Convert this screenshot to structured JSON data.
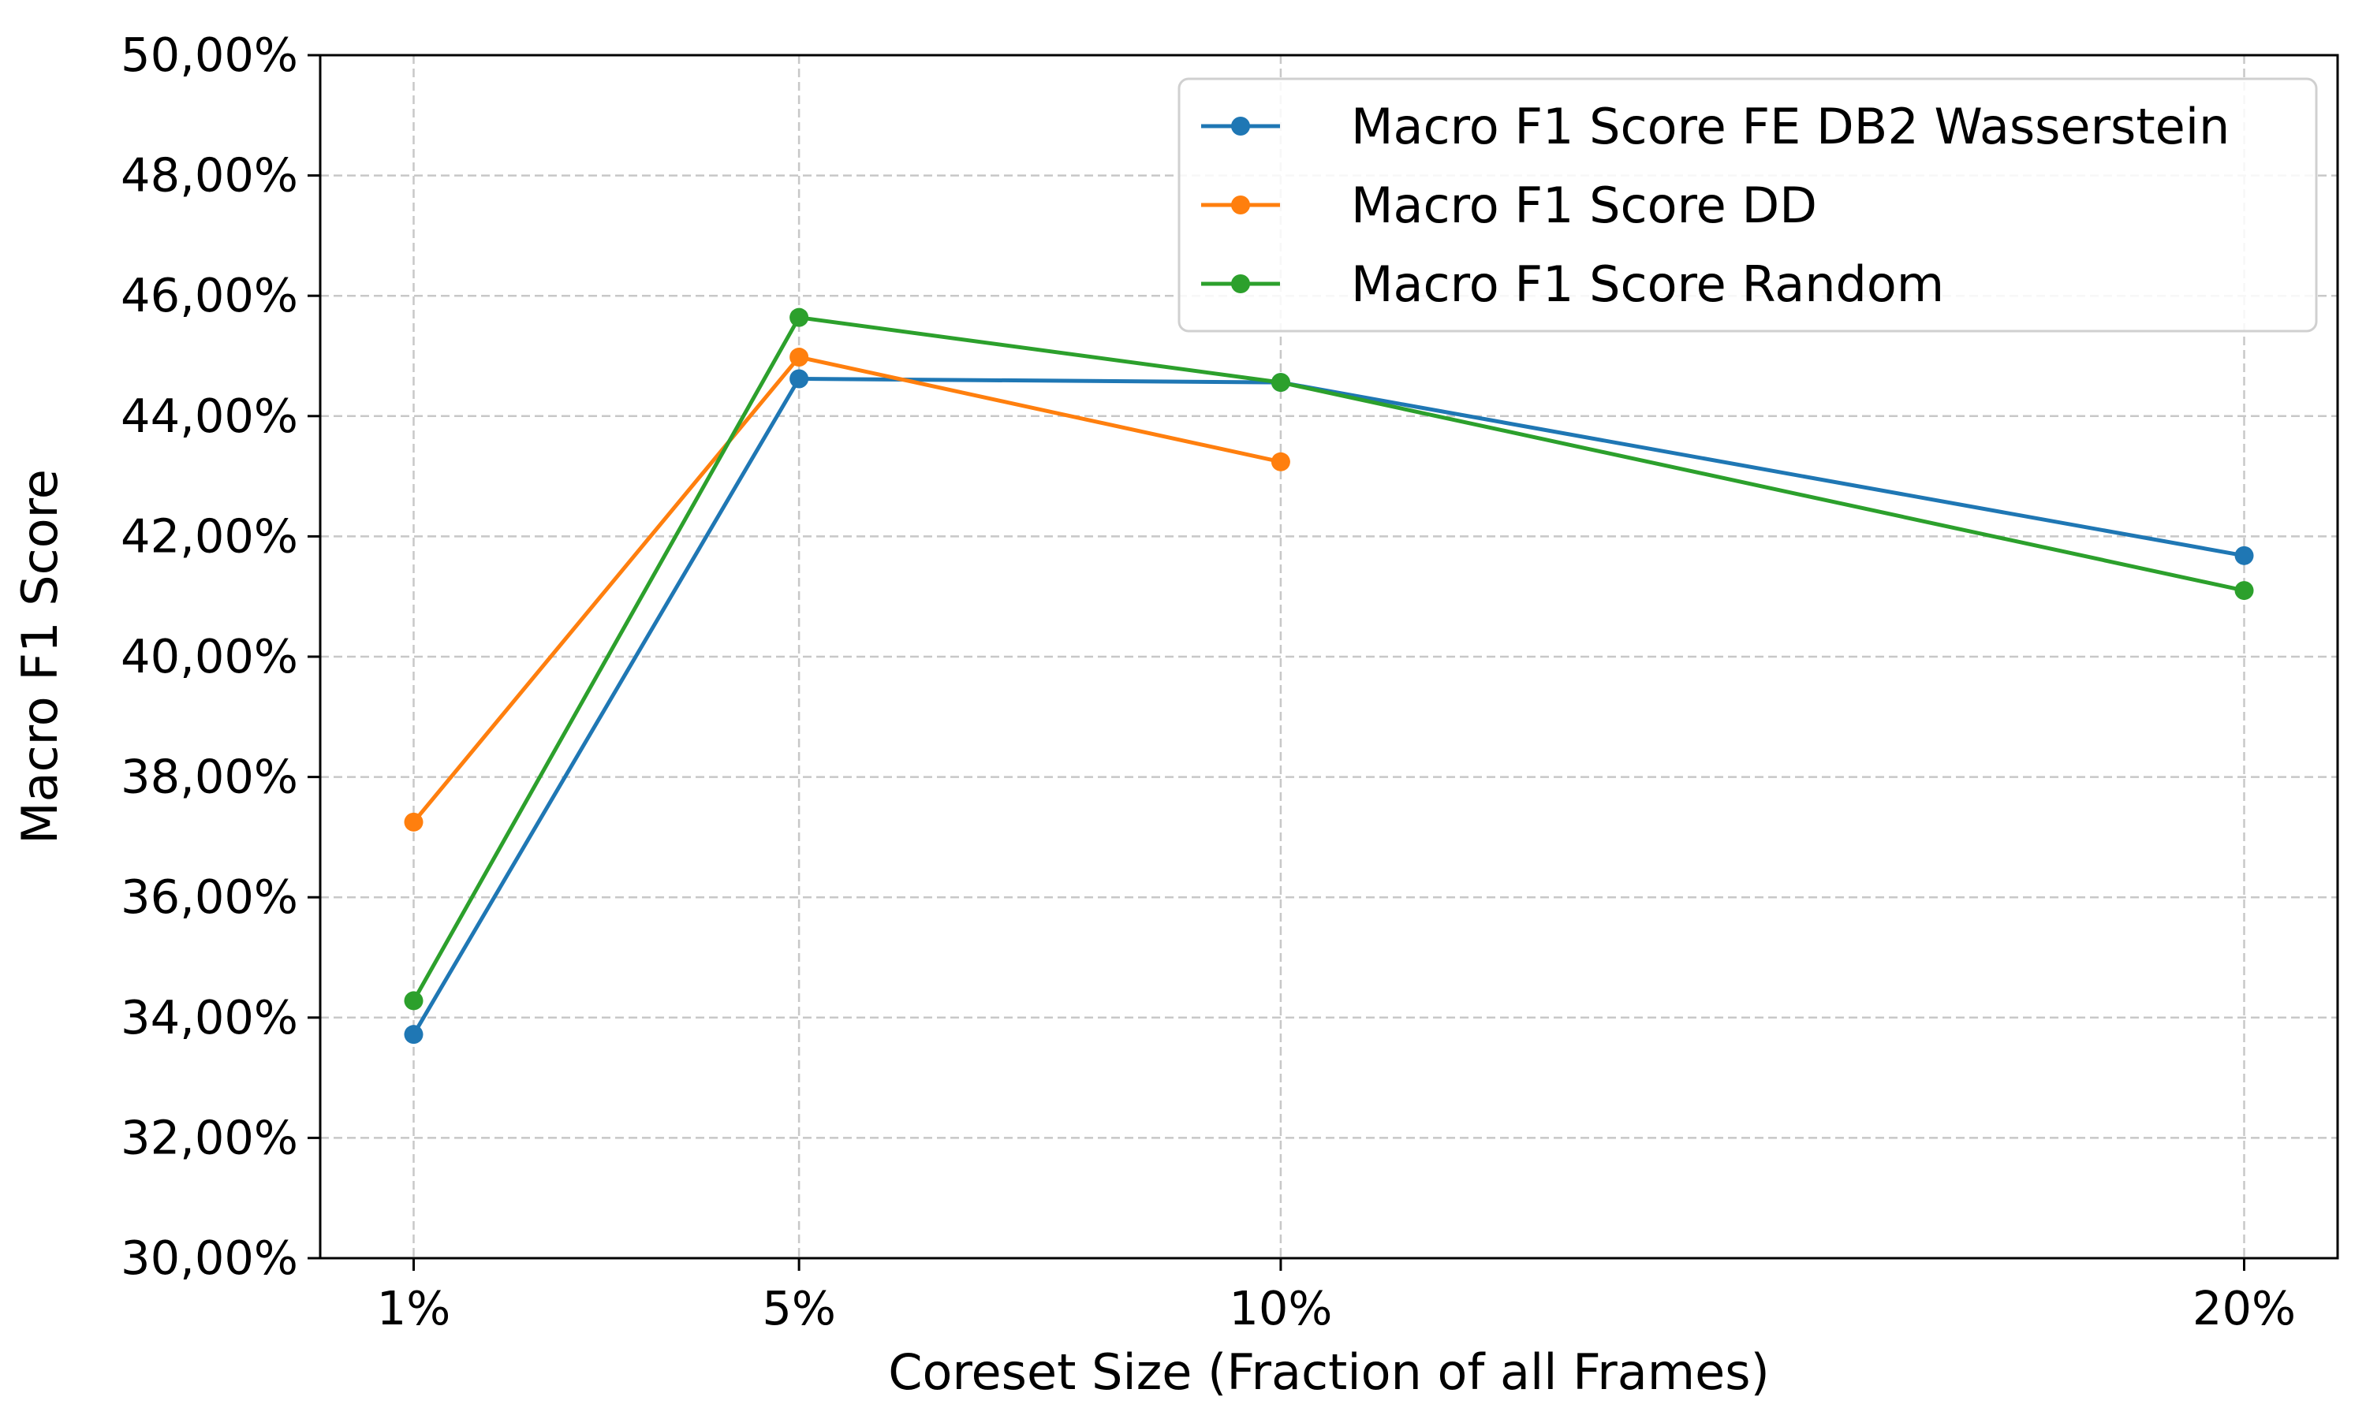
{
  "chart_data": {
    "type": "line",
    "xlabel": "Coreset Size (Fraction of all Frames)",
    "ylabel": "Macro F1 Score",
    "x_ticks": [
      "1%",
      "5%",
      "10%",
      "20%"
    ],
    "x_values": [
      1,
      5,
      10,
      20
    ],
    "xlim": [
      0.03,
      20.97
    ],
    "ylim": [
      30,
      50
    ],
    "y_ticks": [
      30,
      32,
      34,
      36,
      38,
      40,
      42,
      44,
      46,
      48,
      50
    ],
    "y_tick_labels": [
      "30,00%",
      "32,00%",
      "34,00%",
      "36,00%",
      "38,00%",
      "40,00%",
      "42,00%",
      "44,00%",
      "46,00%",
      "48,00%",
      "50,00%"
    ],
    "grid": true,
    "legend_position": "top-right",
    "series": [
      {
        "name": "Macro F1 Score FE DB2 Wasserstein",
        "color": "#1f77b4",
        "x": [
          1,
          5,
          10,
          20
        ],
        "y": [
          33.72,
          44.62,
          44.56,
          41.68
        ]
      },
      {
        "name": "Macro F1 Score DD",
        "color": "#ff7f0e",
        "x": [
          1,
          5,
          10
        ],
        "y": [
          37.25,
          44.98,
          43.24
        ]
      },
      {
        "name": "Macro F1 Score Random",
        "color": "#2ca02c",
        "x": [
          1,
          5,
          10,
          20
        ],
        "y": [
          34.28,
          45.64,
          44.56,
          41.1
        ]
      }
    ]
  }
}
